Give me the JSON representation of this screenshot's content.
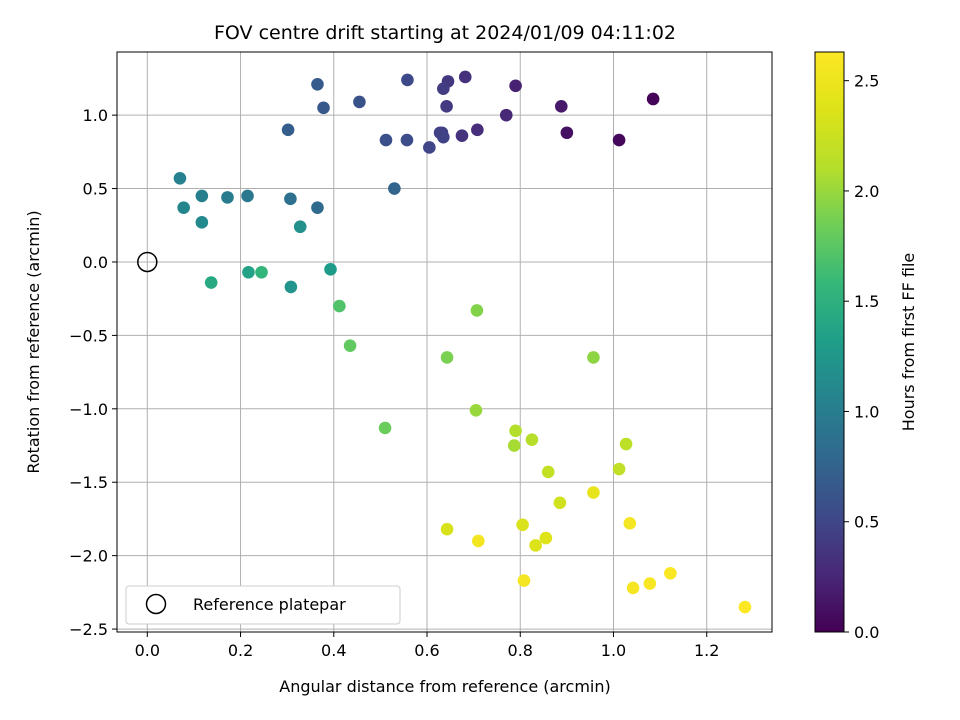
{
  "chart_data": {
    "type": "scatter",
    "title": "FOV centre drift starting at 2024/01/09 04:11:02",
    "xlabel": "Angular distance from reference (arcmin)",
    "ylabel": "Rotation from reference (arcmin)",
    "xlim": [
      -0.065,
      1.34
    ],
    "ylim": [
      -2.52,
      1.43
    ],
    "xticks": [
      0.0,
      0.2,
      0.4,
      0.6,
      0.8,
      1.0,
      1.2
    ],
    "xtick_labels": [
      "0.0",
      "0.2",
      "0.4",
      "0.6",
      "0.8",
      "1.0",
      "1.2"
    ],
    "yticks": [
      -2.5,
      -2.0,
      -1.5,
      -1.0,
      -0.5,
      0.0,
      0.5,
      1.0
    ],
    "ytick_labels": [
      "−2.5",
      "−2.0",
      "−1.5",
      "−1.0",
      "−0.5",
      "0.0",
      "0.5",
      "1.0"
    ],
    "grid": true,
    "colorbar": {
      "label": "Hours from first FF file",
      "colormap": "viridis",
      "range": [
        0.0,
        2.63
      ],
      "ticks": [
        0.0,
        0.5,
        1.0,
        1.5,
        2.0,
        2.5
      ],
      "tick_labels": [
        "0.0",
        "0.5",
        "1.0",
        "1.5",
        "2.0",
        "2.5"
      ]
    },
    "reference_point": {
      "x": 0.0,
      "y": 0.0,
      "label": "Reference platepar",
      "marker": "open-circle"
    },
    "legend": {
      "placement": "lower-left",
      "entries": [
        "Reference platepar"
      ]
    },
    "series": [
      {
        "color_by": "hours",
        "points": [
          {
            "x": 1.085,
            "y": 1.11,
            "c": 0.02
          },
          {
            "x": 1.012,
            "y": 0.83,
            "c": 0.05
          },
          {
            "x": 0.9,
            "y": 0.88,
            "c": 0.1
          },
          {
            "x": 0.888,
            "y": 1.06,
            "c": 0.16
          },
          {
            "x": 0.79,
            "y": 1.2,
            "c": 0.22
          },
          {
            "x": 0.77,
            "y": 1.0,
            "c": 0.27
          },
          {
            "x": 0.708,
            "y": 0.9,
            "c": 0.3
          },
          {
            "x": 0.682,
            "y": 1.26,
            "c": 0.33
          },
          {
            "x": 0.675,
            "y": 0.86,
            "c": 0.35
          },
          {
            "x": 0.645,
            "y": 1.23,
            "c": 0.38
          },
          {
            "x": 0.642,
            "y": 1.06,
            "c": 0.4
          },
          {
            "x": 0.635,
            "y": 1.18,
            "c": 0.42
          },
          {
            "x": 0.632,
            "y": 0.88,
            "c": 0.44
          },
          {
            "x": 0.628,
            "y": 0.88,
            "c": 0.46
          },
          {
            "x": 0.635,
            "y": 0.85,
            "c": 0.47
          },
          {
            "x": 0.605,
            "y": 0.78,
            "c": 0.49
          },
          {
            "x": 0.558,
            "y": 1.24,
            "c": 0.52
          },
          {
            "x": 0.557,
            "y": 0.83,
            "c": 0.55
          },
          {
            "x": 0.512,
            "y": 0.83,
            "c": 0.58
          },
          {
            "x": 0.455,
            "y": 1.09,
            "c": 0.6
          },
          {
            "x": 0.378,
            "y": 1.05,
            "c": 0.64
          },
          {
            "x": 0.365,
            "y": 1.21,
            "c": 0.67
          },
          {
            "x": 0.302,
            "y": 0.9,
            "c": 0.7
          },
          {
            "x": 0.53,
            "y": 0.5,
            "c": 0.75
          },
          {
            "x": 0.365,
            "y": 0.37,
            "c": 0.82
          },
          {
            "x": 0.307,
            "y": 0.43,
            "c": 0.88
          },
          {
            "x": 0.215,
            "y": 0.45,
            "c": 0.95
          },
          {
            "x": 0.172,
            "y": 0.44,
            "c": 0.99
          },
          {
            "x": 0.117,
            "y": 0.45,
            "c": 1.02
          },
          {
            "x": 0.07,
            "y": 0.57,
            "c": 1.05
          },
          {
            "x": 0.078,
            "y": 0.37,
            "c": 1.08
          },
          {
            "x": 0.117,
            "y": 0.27,
            "c": 1.12
          },
          {
            "x": 0.328,
            "y": 0.24,
            "c": 1.18
          },
          {
            "x": 0.308,
            "y": -0.17,
            "c": 1.22
          },
          {
            "x": 0.393,
            "y": -0.05,
            "c": 1.3
          },
          {
            "x": 0.217,
            "y": -0.07,
            "c": 1.36
          },
          {
            "x": 0.137,
            "y": -0.14,
            "c": 1.43
          },
          {
            "x": 0.245,
            "y": -0.07,
            "c": 1.55
          },
          {
            "x": 0.412,
            "y": -0.3,
            "c": 1.7
          },
          {
            "x": 0.435,
            "y": -0.57,
            "c": 1.78
          },
          {
            "x": 0.51,
            "y": -1.13,
            "c": 1.82
          },
          {
            "x": 0.643,
            "y": -0.65,
            "c": 1.88
          },
          {
            "x": 0.707,
            "y": -0.33,
            "c": 1.92
          },
          {
            "x": 0.957,
            "y": -0.65,
            "c": 1.96
          },
          {
            "x": 0.705,
            "y": -1.01,
            "c": 2.0
          },
          {
            "x": 0.787,
            "y": -1.25,
            "c": 2.05
          },
          {
            "x": 0.79,
            "y": -1.15,
            "c": 2.1
          },
          {
            "x": 0.825,
            "y": -1.21,
            "c": 2.12
          },
          {
            "x": 1.027,
            "y": -1.24,
            "c": 2.15
          },
          {
            "x": 1.012,
            "y": -1.41,
            "c": 2.18
          },
          {
            "x": 0.86,
            "y": -1.43,
            "c": 2.2
          },
          {
            "x": 0.885,
            "y": -1.64,
            "c": 2.28
          },
          {
            "x": 0.643,
            "y": -1.82,
            "c": 2.33
          },
          {
            "x": 0.805,
            "y": -1.79,
            "c": 2.34
          },
          {
            "x": 0.833,
            "y": -1.93,
            "c": 2.36
          },
          {
            "x": 0.855,
            "y": -1.88,
            "c": 2.38
          },
          {
            "x": 0.957,
            "y": -1.57,
            "c": 2.45
          },
          {
            "x": 0.71,
            "y": -1.9,
            "c": 2.55
          },
          {
            "x": 0.808,
            "y": -2.17,
            "c": 2.56
          },
          {
            "x": 1.035,
            "y": -1.78,
            "c": 2.56
          },
          {
            "x": 1.042,
            "y": -2.22,
            "c": 2.57
          },
          {
            "x": 1.078,
            "y": -2.19,
            "c": 2.58
          },
          {
            "x": 1.122,
            "y": -2.12,
            "c": 2.6
          },
          {
            "x": 1.282,
            "y": -2.35,
            "c": 2.62
          }
        ]
      }
    ]
  }
}
